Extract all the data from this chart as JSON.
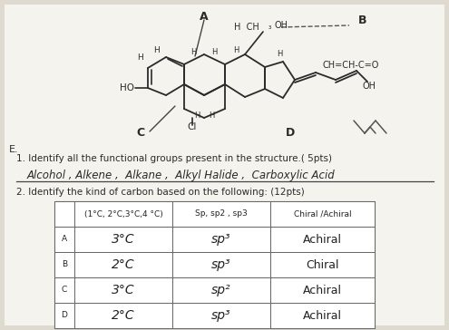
{
  "question1": "1. Identify all the functional groups present in the structure.( 5pts)",
  "answer1_italic": "Alcohol , Alkene ,  Alkane ,  Alkyl Halide ,  Carboxylic Acid",
  "question2": "2. Identify the kind of carbon based on the following: (12pts)",
  "table_headers": [
    "",
    "(1°C, 2°C,3°C,4 °C)",
    "Sp, sp2 , sp3",
    "Chiral /Achiral"
  ],
  "table_rows": [
    [
      "A",
      "3°C",
      "sp³",
      "Achiral"
    ],
    [
      "B",
      "2°C",
      "sp³",
      "Chiral"
    ],
    [
      "C",
      "3°C",
      "sp²",
      "Achiral"
    ],
    [
      "D",
      "2°C",
      "sp³",
      "Achiral"
    ]
  ],
  "bg_color": "#dedad0",
  "lc": "#2a2a2a"
}
